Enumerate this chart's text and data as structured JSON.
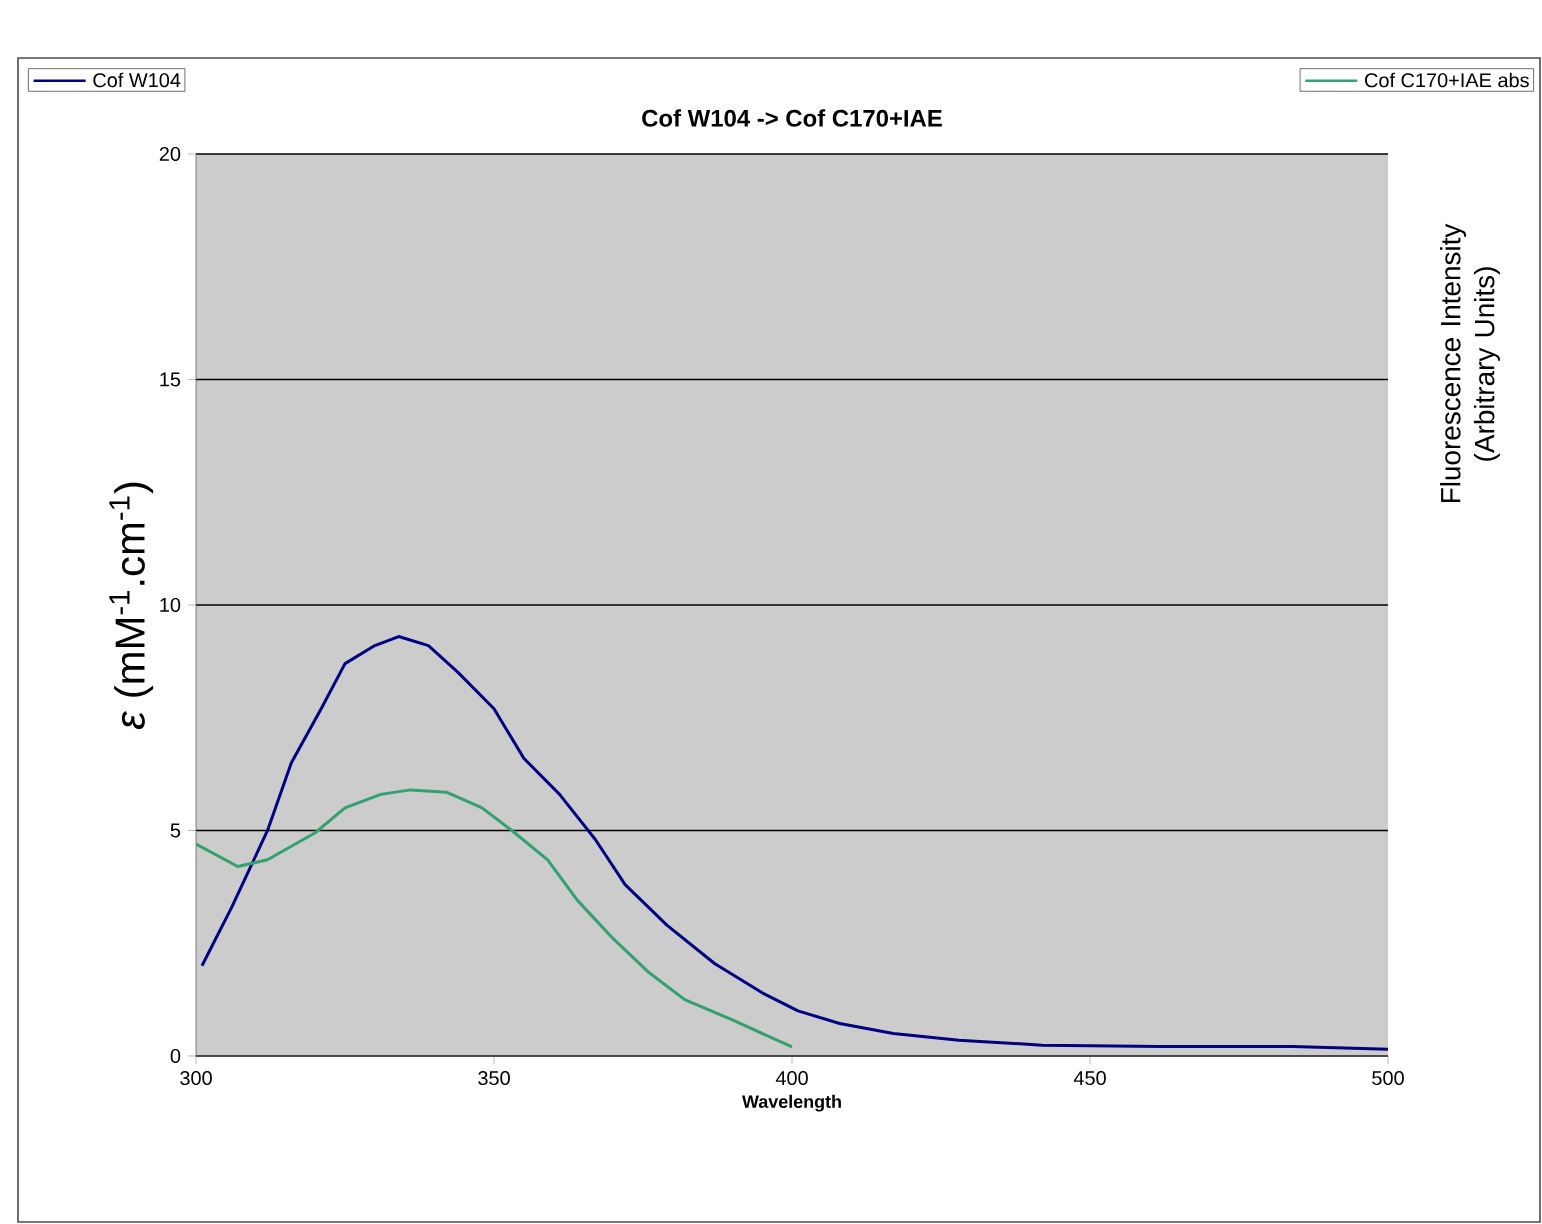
{
  "chart_data": {
    "type": "line",
    "title": "Cof W104 -> Cof C170+IAE",
    "xlabel": "Wavelength",
    "ylabel": "*ε* (mM$^{-1}$.cm$^{-1}$)",
    "y2label": "Fluorescence Intensity (Arbitrary Units)",
    "xlim": [
      300,
      500
    ],
    "xticks": [
      300,
      350,
      400,
      450,
      500
    ],
    "ylim": [
      0,
      20
    ],
    "yticks": [
      0,
      5,
      10,
      15,
      20
    ],
    "grid": "y",
    "legend": "top",
    "line_style": "solid",
    "marker": "none",
    "series": [
      {
        "name": "Cof W104",
        "color": "#000080",
        "x": [
          301,
          306,
          312,
          316,
          321,
          325,
          330,
          334,
          339,
          344,
          350,
          355,
          361,
          367,
          372,
          379,
          387,
          395,
          401,
          408,
          417,
          428,
          442,
          462,
          484,
          500
        ],
        "values": [
          2.0,
          3.3,
          5.0,
          6.5,
          7.7,
          8.7,
          9.1,
          9.3,
          9.1,
          8.5,
          7.7,
          6.6,
          5.8,
          4.8,
          3.8,
          2.9,
          2.05,
          1.4,
          1.0,
          0.72,
          0.5,
          0.35,
          0.24,
          0.21,
          0.21,
          0.15
        ]
      },
      {
        "name": "Cof C170+IAE abs",
        "color": "#33a070",
        "x": [
          300,
          307,
          312,
          320,
          325,
          331,
          336,
          342,
          348,
          353,
          359,
          364,
          370,
          376,
          382,
          390,
          400
        ],
        "values": [
          4.7,
          4.2,
          4.35,
          4.95,
          5.5,
          5.8,
          5.9,
          5.85,
          5.5,
          5.0,
          4.35,
          3.45,
          2.6,
          1.85,
          1.25,
          0.8,
          0.2
        ]
      }
    ]
  }
}
